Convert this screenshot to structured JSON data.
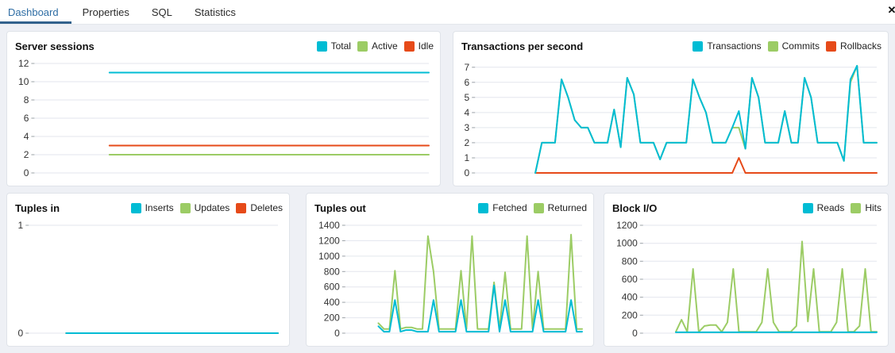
{
  "tab_bar": {
    "tabs": [
      {
        "label": "Dashboard",
        "active": true
      },
      {
        "label": "Properties",
        "active": false
      },
      {
        "label": "SQL",
        "active": false
      },
      {
        "label": "Statistics",
        "active": false
      }
    ],
    "close_icon_glyph": "✕"
  },
  "colors": {
    "cyan": "#00BCD4",
    "green": "#9CCC65",
    "red": "#E64A19",
    "active_tab_text": "#2e6da4",
    "active_tab_underline": "#32628c",
    "gridline": "#e3e6ee"
  },
  "chart_data": [
    {
      "type": "line",
      "title": "Server sessions",
      "ylim": [
        0,
        12
      ],
      "yticks": [
        0,
        2,
        4,
        6,
        8,
        10,
        12
      ],
      "start_frac": 0.19,
      "grid": true,
      "legend_position": "top-right",
      "series": [
        {
          "name": "Total",
          "color": "#00BCD4",
          "values": [
            11,
            11,
            11,
            11,
            11,
            11,
            11,
            11
          ]
        },
        {
          "name": "Active",
          "color": "#9CCC65",
          "values": [
            2,
            2,
            2,
            2,
            2,
            2,
            2,
            2
          ]
        },
        {
          "name": "Idle",
          "color": "#E64A19",
          "values": [
            3,
            3,
            3,
            3,
            3,
            3,
            3,
            3
          ]
        }
      ]
    },
    {
      "type": "line",
      "title": "Transactions per second",
      "ylim": [
        0,
        7.25
      ],
      "yticks": [
        0,
        1,
        2,
        3,
        4,
        5,
        6,
        7
      ],
      "start_frac": 0.15,
      "grid": true,
      "legend_position": "top-right",
      "series": [
        {
          "name": "Transactions",
          "color": "#00BCD4",
          "values": [
            0,
            2,
            2,
            2,
            6.2,
            5,
            3.5,
            3,
            3,
            2,
            2,
            2,
            4.2,
            1.7,
            6.3,
            5.2,
            2,
            2,
            2,
            0.9,
            2,
            2,
            2,
            2,
            6.2,
            5,
            4,
            2,
            2,
            2,
            3,
            4.1,
            1.6,
            6.3,
            5,
            2,
            2,
            2,
            4.1,
            2,
            2,
            6.3,
            5,
            2,
            2,
            2,
            2,
            0.8,
            6.2,
            7.1,
            2,
            2,
            2
          ]
        },
        {
          "name": "Commits",
          "color": "#9CCC65",
          "values": [
            0,
            2,
            2,
            2,
            6.2,
            5,
            3.5,
            3,
            3,
            2,
            2,
            2,
            4.2,
            1.7,
            6.3,
            5.2,
            2,
            2,
            2,
            0.9,
            2,
            2,
            2,
            2,
            6.2,
            5,
            4,
            2,
            2,
            2,
            3,
            3,
            1.6,
            6.3,
            5,
            2,
            2,
            2,
            4.1,
            2,
            2,
            6.3,
            5,
            2,
            2,
            2,
            2,
            0.8,
            6,
            7.1,
            2,
            2,
            2
          ]
        },
        {
          "name": "Rollbacks",
          "color": "#E64A19",
          "values": [
            0,
            0,
            0,
            0,
            0,
            0,
            0,
            0,
            0,
            0,
            0,
            0,
            0,
            0,
            0,
            0,
            0,
            0,
            0,
            0,
            0,
            0,
            0,
            0,
            0,
            0,
            0,
            0,
            0,
            0,
            0,
            1,
            0,
            0,
            0,
            0,
            0,
            0,
            0,
            0,
            0,
            0,
            0,
            0,
            0,
            0,
            0,
            0,
            0,
            0,
            0,
            0,
            0
          ]
        }
      ]
    },
    {
      "type": "line",
      "title": "Tuples in",
      "ylim": [
        0,
        1
      ],
      "yticks": [
        0,
        1
      ],
      "start_frac": 0.15,
      "grid": true,
      "legend_position": "top-right",
      "series": [
        {
          "name": "Inserts",
          "color": "#00BCD4",
          "values": [
            0,
            0,
            0,
            0,
            0,
            0,
            0,
            0
          ]
        },
        {
          "name": "Updates",
          "color": "#9CCC65",
          "values": [
            0,
            0,
            0,
            0,
            0,
            0,
            0,
            0
          ]
        },
        {
          "name": "Deletes",
          "color": "#E64A19",
          "values": [
            0,
            0,
            0,
            0,
            0,
            0,
            0,
            0
          ]
        }
      ]
    },
    {
      "type": "line",
      "title": "Tuples out",
      "ylim": [
        0,
        1400
      ],
      "yticks": [
        0,
        200,
        400,
        600,
        800,
        1000,
        1200,
        1400
      ],
      "start_frac": 0.14,
      "grid": true,
      "legend_position": "top-right",
      "series": [
        {
          "name": "Fetched",
          "color": "#00BCD4",
          "values": [
            90,
            20,
            20,
            430,
            20,
            40,
            40,
            20,
            20,
            20,
            430,
            20,
            20,
            20,
            20,
            430,
            20,
            20,
            20,
            20,
            20,
            620,
            20,
            430,
            20,
            20,
            20,
            20,
            20,
            430,
            20,
            20,
            20,
            20,
            20,
            430,
            20,
            20
          ]
        },
        {
          "name": "Returned",
          "color": "#9CCC65",
          "values": [
            130,
            55,
            55,
            810,
            55,
            75,
            75,
            55,
            55,
            1260,
            800,
            55,
            55,
            55,
            55,
            810,
            55,
            1260,
            55,
            55,
            55,
            660,
            55,
            790,
            55,
            55,
            55,
            1260,
            55,
            800,
            55,
            55,
            55,
            55,
            55,
            1280,
            55,
            55
          ]
        }
      ]
    },
    {
      "type": "line",
      "title": "Block I/O",
      "ylim": [
        0,
        1200
      ],
      "yticks": [
        0,
        200,
        400,
        600,
        800,
        1000,
        1200
      ],
      "start_frac": 0.14,
      "grid": true,
      "legend_position": "top-right",
      "series": [
        {
          "name": "Reads",
          "color": "#00BCD4",
          "values": [
            10,
            10,
            10,
            10,
            10,
            10,
            10,
            10,
            10,
            10,
            10,
            10,
            10,
            10,
            10,
            10,
            10,
            10,
            10,
            10,
            10,
            10,
            10,
            10,
            10,
            10,
            10,
            10,
            10,
            10,
            10,
            10,
            10,
            10,
            10,
            10
          ]
        },
        {
          "name": "Hits",
          "color": "#9CCC65",
          "values": [
            15,
            150,
            15,
            715,
            15,
            80,
            90,
            90,
            15,
            120,
            715,
            15,
            15,
            15,
            15,
            120,
            715,
            120,
            15,
            15,
            15,
            80,
            1020,
            130,
            715,
            15,
            15,
            15,
            120,
            715,
            15,
            15,
            80,
            715,
            15,
            15
          ]
        }
      ]
    }
  ]
}
